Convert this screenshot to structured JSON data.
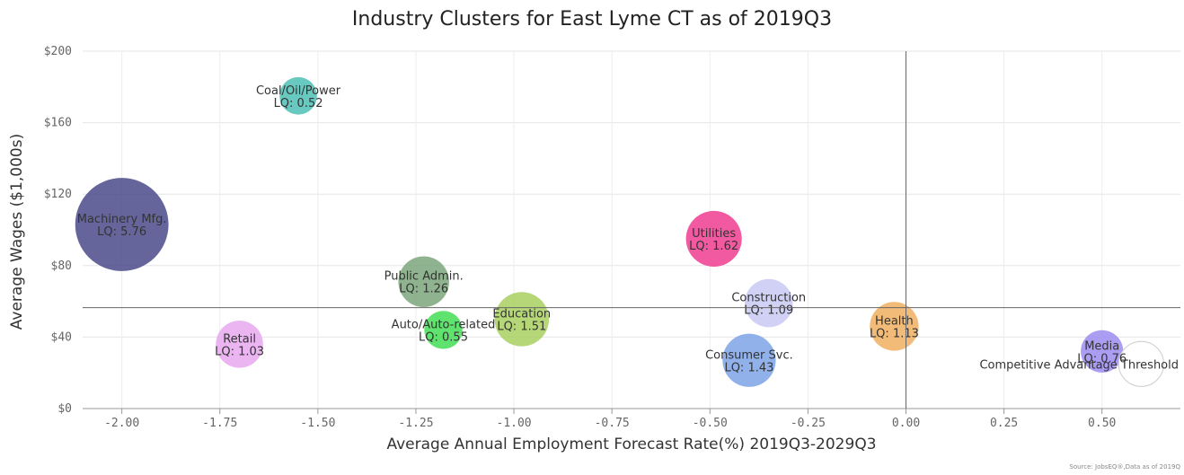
{
  "chart_data": {
    "type": "scatter",
    "title": "Industry Clusters for East Lyme CT as of 2019Q3",
    "xlabel": "Average Annual Employment Forecast Rate(%) 2019Q3-2029Q3",
    "ylabel": "Average Wages ($1,000s)",
    "xlim": [
      -2.1,
      0.7
    ],
    "ylim": [
      0,
      200
    ],
    "x_ticks": [
      -2.0,
      -1.75,
      -1.5,
      -1.25,
      -1.0,
      -0.75,
      -0.5,
      -0.25,
      0.0,
      0.25,
      0.5
    ],
    "x_tick_labels": [
      "-2.00",
      "-1.75",
      "-1.50",
      "-1.25",
      "-1.00",
      "-0.75",
      "-0.50",
      "-0.25",
      "0.00",
      "0.25",
      "0.50"
    ],
    "y_ticks": [
      0,
      40,
      80,
      120,
      160,
      200
    ],
    "y_tick_labels": [
      "$0",
      "$40",
      "$80",
      "$120",
      "$160",
      "$200"
    ],
    "grid": true,
    "reference_lines": {
      "x": 0.0,
      "y": 56.5
    },
    "threshold_label": "Competitive Advantage Threshold",
    "source": "Source: JobsEQ®,Data as of 2019Q",
    "points": [
      {
        "name": "Coal/Oil/Power",
        "lq_text": "LQ: 0.52",
        "x": -1.55,
        "y": 175,
        "lq": 0.52,
        "color": "#4dc0b5"
      },
      {
        "name": "Machinery Mfg.",
        "lq_text": "LQ: 5.76",
        "x": -2.0,
        "y": 103,
        "lq": 5.76,
        "color": "#4a4a8a"
      },
      {
        "name": "Public Admin.",
        "lq_text": "LQ: 1.26",
        "x": -1.23,
        "y": 71,
        "lq": 1.26,
        "color": "#7aa67a"
      },
      {
        "name": "Retail",
        "lq_text": "LQ: 1.03",
        "x": -1.7,
        "y": 36,
        "lq": 1.03,
        "color": "#e8a8f0"
      },
      {
        "name": "Auto/Auto-related",
        "lq_text": "LQ: 0.55",
        "x": -1.18,
        "y": 44,
        "lq": 0.55,
        "color": "#44dd55"
      },
      {
        "name": "Education",
        "lq_text": "LQ: 1.51",
        "x": -0.98,
        "y": 50,
        "lq": 1.51,
        "color": "#a8d060"
      },
      {
        "name": "Utilities",
        "lq_text": "LQ: 1.62",
        "x": -0.49,
        "y": 95,
        "lq": 1.62,
        "color": "#ee3d8f"
      },
      {
        "name": "Construction",
        "lq_text": "LQ: 1.09",
        "x": -0.35,
        "y": 59,
        "lq": 1.09,
        "color": "#c9c9f5"
      },
      {
        "name": "Consumer Svc.",
        "lq_text": "LQ: 1.43",
        "x": -0.4,
        "y": 27,
        "lq": 1.43,
        "color": "#7ea3e6"
      },
      {
        "name": "Health",
        "lq_text": "LQ: 1.13",
        "x": -0.03,
        "y": 46,
        "lq": 1.13,
        "color": "#f0b060"
      },
      {
        "name": "Media",
        "lq_text": "LQ: 0.76",
        "x": 0.5,
        "y": 32,
        "lq": 0.76,
        "color": "#9b8cf0"
      },
      {
        "name": "",
        "lq_text": "",
        "x": 0.6,
        "y": 25,
        "lq": 0.9,
        "color": "#ffffff",
        "stroke": "#cccccc"
      }
    ]
  }
}
